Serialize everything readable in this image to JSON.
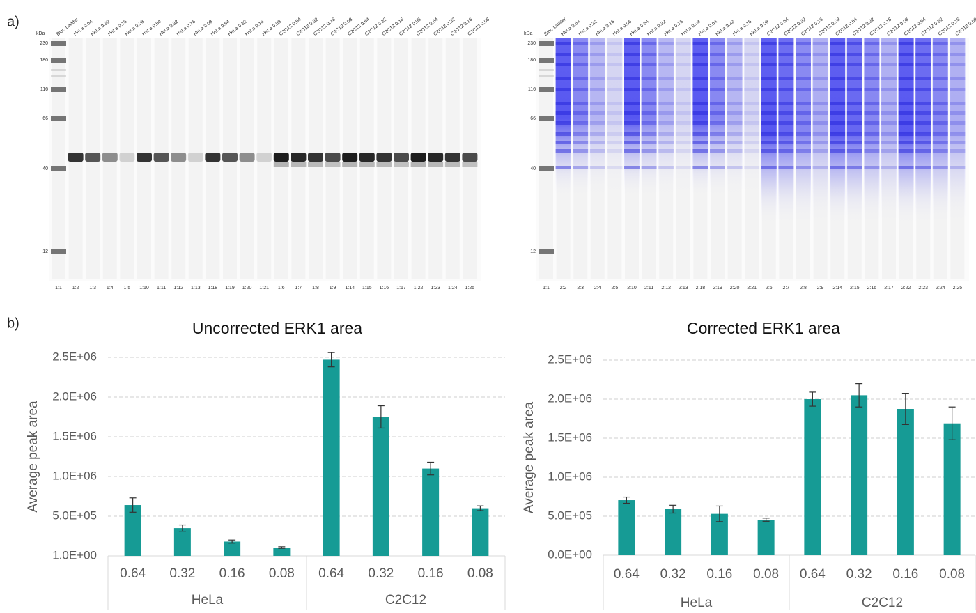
{
  "panels": [
    "a)",
    "b)"
  ],
  "gels": [
    {
      "kda_label": "kDa",
      "markers": [
        "230",
        "180",
        "116",
        "66",
        "40",
        "12"
      ],
      "lane_headers": [
        "Biot. Ladder",
        "HeLa 0.64",
        "HeLa 0.32",
        "HeLa 0.16",
        "HeLa 0.08",
        "HeLa 0.64",
        "HeLa 0.32",
        "HeLa 0.16",
        "HeLa 0.08",
        "HeLa 0.64",
        "HeLa 0.32",
        "HeLa 0.16",
        "HeLa 0.08",
        "C2C12 0.64",
        "C2C12 0.32",
        "C2C12 0.16",
        "C2C12 0.08",
        "C2C12 0.64",
        "C2C12 0.32",
        "C2C12 0.16",
        "C2C12 0.08",
        "C2C12 0.64",
        "C2C12 0.32",
        "C2C12 0.16",
        "C2C12 0.08"
      ],
      "lane_ids": [
        "1:1",
        "1:2",
        "1:3",
        "1:4",
        "1:5",
        "1:10",
        "1:11",
        "1:12",
        "1:13",
        "1:18",
        "1:19",
        "1:20",
        "1:21",
        "1:6",
        "1:7",
        "1:8",
        "1:9",
        "1:14",
        "1:15",
        "1:16",
        "1:17",
        "1:22",
        "1:23",
        "1:24",
        "1:25"
      ]
    },
    {
      "kda_label": "kDa",
      "markers": [
        "230",
        "180",
        "116",
        "66",
        "40",
        "12"
      ],
      "lane_headers": [
        "Biot. Ladder",
        "HeLa 0.64",
        "HeLa 0.32",
        "HeLa 0.16",
        "HeLa 0.08",
        "HeLa 0.64",
        "HeLa 0.32",
        "HeLa 0.16",
        "HeLa 0.08",
        "HeLa 0.64",
        "HeLa 0.32",
        "HeLa 0.16",
        "HeLa 0.08",
        "C2C12 0.64",
        "C2C12 0.32",
        "C2C12 0.16",
        "C2C12 0.08",
        "C2C12 0.64",
        "C2C12 0.32",
        "C2C12 0.16",
        "C2C12 0.08",
        "C2C12 0.64",
        "C2C12 0.32",
        "C2C12 0.16",
        "C2C12 0.08"
      ],
      "lane_ids": [
        "1:1",
        "2:2",
        "2:3",
        "2:4",
        "2:5",
        "2:10",
        "2:11",
        "2:12",
        "2:13",
        "2:18",
        "2:19",
        "2:20",
        "2:21",
        "2:6",
        "2:7",
        "2:8",
        "2:9",
        "2:14",
        "2:15",
        "2:16",
        "2:17",
        "2:22",
        "2:23",
        "2:24",
        "2:25"
      ]
    }
  ],
  "chart_data": [
    {
      "type": "bar",
      "title": "Uncorrected ERK1 area",
      "y_label": "Average peak area",
      "color": "#169b95",
      "categories": [
        "0.64",
        "0.32",
        "0.16",
        "0.08",
        "0.64",
        "0.32",
        "0.16",
        "0.08"
      ],
      "category_groups": [
        "HeLa",
        "C2C12"
      ],
      "values": [
        640000,
        350000,
        180000,
        105000,
        2470000,
        1750000,
        1100000,
        600000
      ],
      "errors": [
        90000,
        40000,
        20000,
        10000,
        90000,
        140000,
        80000,
        30000
      ],
      "ylim": [
        1,
        2500000
      ],
      "yticks": [
        {
          "value": 1,
          "label": "1.0E+00"
        },
        {
          "value": 500000,
          "label": "5.0E+05"
        },
        {
          "value": 1000000,
          "label": "1.0E+06"
        },
        {
          "value": 1500000,
          "label": "1.5E+06"
        },
        {
          "value": 2000000,
          "label": "2.0E+06"
        },
        {
          "value": 2500000,
          "label": "2.5E+06"
        }
      ],
      "grid": true
    },
    {
      "type": "bar",
      "title": "Corrected ERK1 area",
      "y_label": "Average peak area",
      "color": "#169b95",
      "categories": [
        "0.64",
        "0.32",
        "0.16",
        "0.08",
        "0.64",
        "0.32",
        "0.16",
        "0.08"
      ],
      "category_groups": [
        "HeLa",
        "C2C12"
      ],
      "values": [
        705000,
        590000,
        530000,
        455000,
        2000000,
        2050000,
        1875000,
        1690000
      ],
      "errors": [
        40000,
        50000,
        100000,
        20000,
        90000,
        150000,
        200000,
        210000
      ],
      "ylim": [
        0,
        2500000
      ],
      "yticks": [
        {
          "value": 0,
          "label": "0.0E+00"
        },
        {
          "value": 500000,
          "label": "5.0E+05"
        },
        {
          "value": 1000000,
          "label": "1.0E+06"
        },
        {
          "value": 1500000,
          "label": "1.5E+06"
        },
        {
          "value": 2000000,
          "label": "2.0E+06"
        },
        {
          "value": 2500000,
          "label": "2.5E+06"
        }
      ],
      "grid": true
    }
  ]
}
